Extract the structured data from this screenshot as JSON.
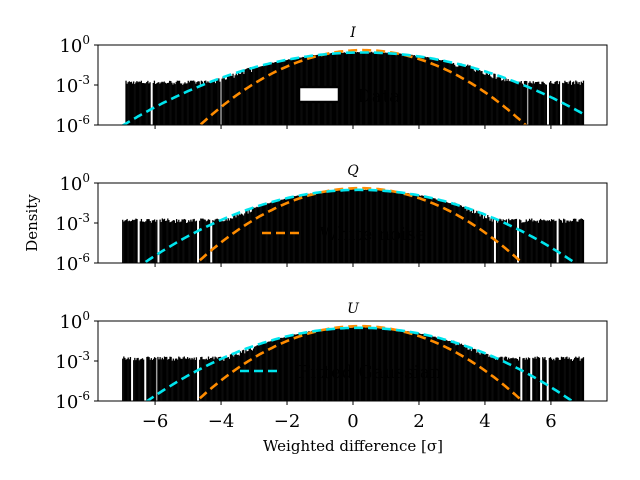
{
  "chart_data": {
    "type": "line",
    "figure": {
      "xlabel": "Weighted difference [σ]",
      "ylabel": "Density",
      "xlim": [
        -7.73,
        7.7
      ],
      "ylim": [
        1e-06,
        1
      ],
      "yscale": "log",
      "xticks": [
        -6,
        -4,
        -2,
        0,
        2,
        4,
        6
      ],
      "xtick_labels": [
        "−6",
        "−4",
        "−2",
        "0",
        "2",
        "4",
        "6"
      ],
      "yticks": [
        {
          "base": "10",
          "exp": "0"
        },
        {
          "base": "10",
          "exp": "-3"
        },
        {
          "base": "10",
          "exp": "-6"
        }
      ],
      "ytick_values": [
        1,
        0.001,
        1e-06
      ],
      "colors": {
        "data": "#000000",
        "white_noise": "#ff8c00",
        "fitted": "#00e5ee"
      }
    },
    "panels": [
      {
        "title": "I",
        "legend": {
          "label": "Data",
          "kind": "box",
          "placement": "center"
        },
        "histogram_range": [
          -6.9,
          7.0
        ],
        "histogram_floor_density": 0.001,
        "white_noise": {
          "mu": 0.3,
          "sigma": 0.97
        },
        "fitted_gaussian": {
          "mu": 0.3,
          "sigma": 1.45
        },
        "gaps": [
          -6.1,
          -4.0,
          5.3,
          5.9,
          6.3
        ]
      },
      {
        "title": "Q",
        "legend": {
          "label": "White noise",
          "kind": "dashed-orange",
          "placement": "center"
        },
        "histogram_range": [
          -7.0,
          7.0
        ],
        "histogram_floor_density": 0.001,
        "white_noise": {
          "mu": 0.2,
          "sigma": 0.97
        },
        "fitted_gaussian": {
          "mu": 0.2,
          "sigma": 1.3
        },
        "gaps": [
          -6.5,
          -5.9,
          -4.7,
          -4.3,
          4.3,
          5.0,
          6.2
        ]
      },
      {
        "title": "U",
        "legend": {
          "label": "Fitted Gaussian",
          "kind": "dashed-cyan",
          "placement": "lower-center"
        },
        "histogram_range": [
          -7.0,
          7.0
        ],
        "histogram_floor_density": 0.001,
        "white_noise": {
          "mu": 0.2,
          "sigma": 0.97
        },
        "fitted_gaussian": {
          "mu": 0.2,
          "sigma": 1.28
        },
        "gaps": [
          -6.7,
          -6.3,
          -5.95,
          -4.7,
          5.1,
          5.4,
          5.7,
          5.9
        ]
      }
    ]
  }
}
